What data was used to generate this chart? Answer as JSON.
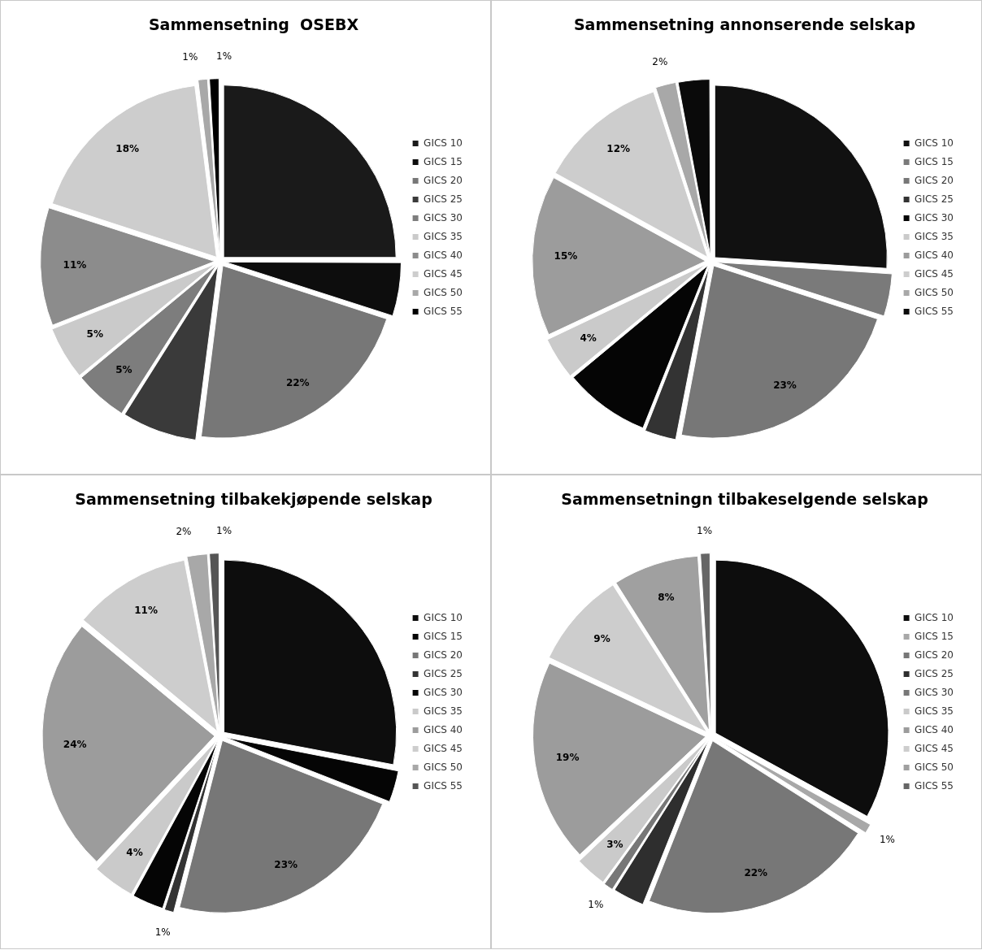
{
  "chart_data": [
    {
      "type": "pie",
      "title": "Sammensetning  OSEBX",
      "legend": "right",
      "categories": [
        "GICS 10",
        "GICS 15",
        "GICS 20",
        "GICS 25",
        "GICS 30",
        "GICS 35",
        "GICS 40",
        "GICS 45",
        "GICS 50",
        "GICS 55"
      ],
      "values": [
        25,
        5,
        22,
        7,
        5,
        5,
        11,
        18,
        1,
        1
      ],
      "colors": [
        "#1a1a1a",
        "#0d0d0d",
        "#777777",
        "#3a3a3a",
        "#7d7d7d",
        "#cacaca",
        "#8c8c8c",
        "#cdcdcd",
        "#a8a8a8",
        "#000000"
      ],
      "value_labels": [
        null,
        null,
        "22%",
        null,
        "5%",
        "5%",
        "11%",
        "18%",
        "1%",
        "1%"
      ]
    },
    {
      "type": "pie",
      "title": "Sammensetning annonserende selskap",
      "legend": "right",
      "categories": [
        "GICS 10",
        "GICS 15",
        "GICS 20",
        "GICS 25",
        "GICS 30",
        "GICS 35",
        "GICS 40",
        "GICS 45",
        "GICS 50",
        "GICS 55"
      ],
      "values": [
        26,
        4,
        23,
        3,
        8,
        4,
        15,
        12,
        2,
        3
      ],
      "colors": [
        "#111111",
        "#7a7a7a",
        "#777777",
        "#333333",
        "#050505",
        "#cacaca",
        "#9c9c9c",
        "#cdcdcd",
        "#a8a8a8",
        "#0a0a0a"
      ],
      "value_labels": [
        null,
        null,
        "23%",
        null,
        null,
        "4%",
        "15%",
        "12%",
        "2%",
        null
      ]
    },
    {
      "type": "pie",
      "title": "Sammensetning tilbakekjøpende selskap",
      "legend": "right",
      "categories": [
        "GICS 10",
        "GICS 15",
        "GICS 20",
        "GICS 25",
        "GICS 30",
        "GICS 35",
        "GICS 40",
        "GICS 45",
        "GICS 50",
        "GICS 55"
      ],
      "values": [
        28,
        3,
        23,
        1,
        3,
        4,
        24,
        11,
        2,
        1
      ],
      "colors": [
        "#0d0d0d",
        "#050505",
        "#777777",
        "#333333",
        "#050505",
        "#cacaca",
        "#9c9c9c",
        "#cdcdcd",
        "#a8a8a8",
        "#555555"
      ],
      "value_labels": [
        null,
        null,
        "23%",
        "1%",
        null,
        "4%",
        "24%",
        "11%",
        "2%",
        "1%"
      ]
    },
    {
      "type": "pie",
      "title": "Sammensetningn tilbakeselgende selskap",
      "legend": "right",
      "categories": [
        "GICS 10",
        "GICS 15",
        "GICS 20",
        "GICS 25",
        "GICS 30",
        "GICS 35",
        "GICS 40",
        "GICS 45",
        "GICS 50",
        "GICS 55"
      ],
      "values": [
        33,
        1,
        22,
        3,
        1,
        3,
        19,
        9,
        8,
        1
      ],
      "colors": [
        "#0d0d0d",
        "#a8a8a8",
        "#777777",
        "#2e2e2e",
        "#777777",
        "#cacaca",
        "#9c9c9c",
        "#cdcdcd",
        "#a0a0a0",
        "#666666"
      ],
      "value_labels": [
        null,
        "1%",
        "22%",
        null,
        "1%",
        "3%",
        "19%",
        "9%",
        "8%",
        "1%"
      ]
    }
  ]
}
